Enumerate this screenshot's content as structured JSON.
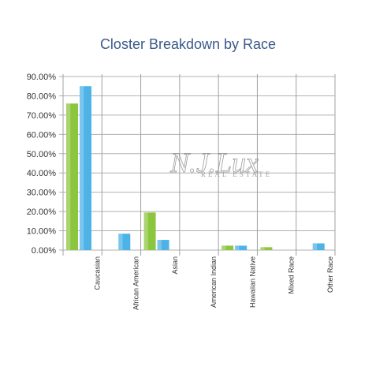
{
  "chart_data": {
    "type": "bar",
    "title": "Closter Breakdown by Race",
    "categories": [
      "Caucasian",
      "African American",
      "Asian",
      "American Indian",
      "Hawaiian Native",
      "Mixed Race",
      "Other Race"
    ],
    "series": [
      {
        "values": [
          76,
          0,
          19.5,
          0,
          2.3,
          1.5,
          0
        ],
        "color": "#8cc63f"
      },
      {
        "values": [
          85,
          8.5,
          5.3,
          0,
          2.3,
          0,
          3.5
        ],
        "color": "#4db3e6"
      }
    ],
    "y_ticks": [
      "0.00%",
      "10.00%",
      "20.00%",
      "30.00%",
      "40.00%",
      "50.00%",
      "60.00%",
      "70.00%",
      "80.00%",
      "90.00%"
    ],
    "ylim": [
      0,
      90
    ],
    "grid": true,
    "legend": "none"
  },
  "watermark": {
    "logo_text": "N.J.Lux",
    "tagline": "REAL ESTATE"
  }
}
